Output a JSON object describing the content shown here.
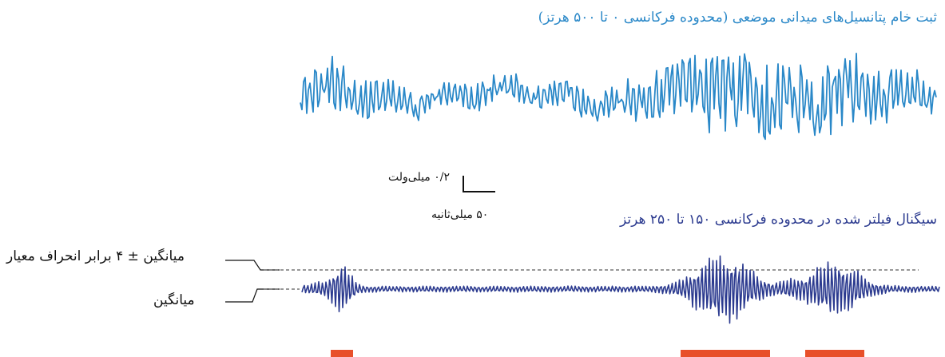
{
  "titles": {
    "raw": "ثبت خام پتانسیل‌های میدانی موضعی (محدوده فرکانسی ۰ تا ۵۰۰ هرتز)",
    "filtered": "سیگنال فیلتر شده در محدوده فرکانسی ۱۵۰ تا ۲۵۰ هرتز"
  },
  "scale_bar": {
    "voltage": "۰/۲ میلی‌ولت",
    "time": "۵۰ میلی‌ثانیه"
  },
  "annotations": {
    "threshold": "میانگین ± ۴ برابر انحراف معیار",
    "mean": "میانگین"
  },
  "colors": {
    "raw_trace": "#2a88c8",
    "filtered_trace": "#2b3a8f",
    "event_marker": "#e8502a",
    "dashed_line": "#777777",
    "scale_bar": "#111111"
  }
}
